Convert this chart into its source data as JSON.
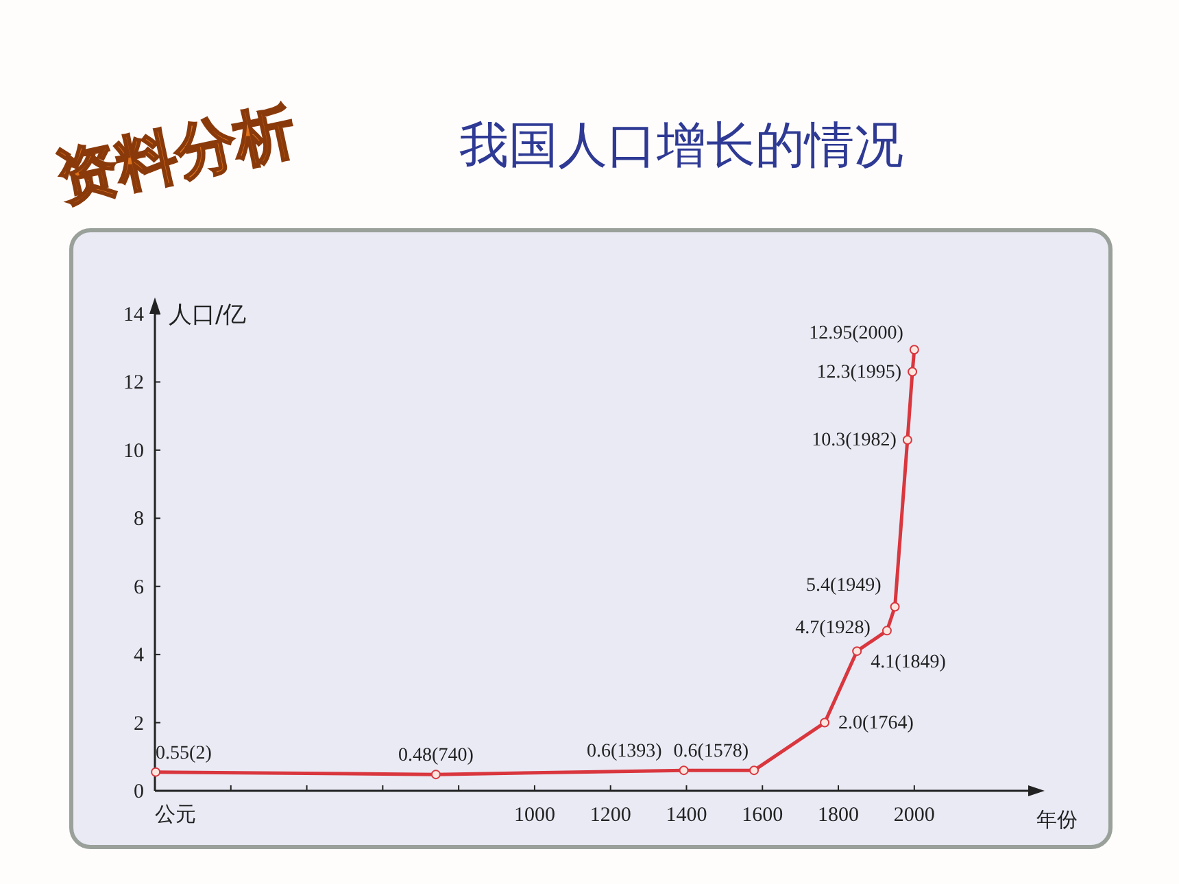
{
  "chart_data": {
    "type": "line",
    "title": "我国人口增长的情况",
    "subtitle": "资料分析",
    "xlabel": "年份",
    "ylabel": "人口/亿",
    "x": [
      2,
      740,
      1393,
      1578,
      1764,
      1849,
      1928,
      1949,
      1982,
      1995,
      2000
    ],
    "series": [
      {
        "color": "#d9363e",
        "values": [
          0.55,
          0.48,
          0.6,
          0.6,
          2.0,
          4.1,
          4.7,
          5.4,
          10.3,
          12.3,
          12.95
        ],
        "value_labels": [
          "0.55(2)",
          "0.48(740)",
          "0.6(1393)",
          "0.6(1578)",
          "2.0(1764)",
          "4.1(1849)",
          "4.7(1928)",
          "5.4(1949)",
          "10.3(1982)",
          "12.3(1995)",
          "12.95(2000)"
        ]
      }
    ],
    "xlim": [
      0,
      2300
    ],
    "ylim": [
      0,
      14
    ],
    "xticks": [
      {
        "value": 0,
        "label": "公元"
      },
      {
        "value": 200,
        "label": null
      },
      {
        "value": 400,
        "label": null
      },
      {
        "value": 600,
        "label": null
      },
      {
        "value": 800,
        "label": null
      },
      1000,
      1200,
      1400,
      1600,
      1800,
      2000
    ],
    "yticks": [
      0,
      2,
      4,
      6,
      8,
      10,
      12,
      14
    ],
    "marker": "circle",
    "line_style": "solid"
  }
}
